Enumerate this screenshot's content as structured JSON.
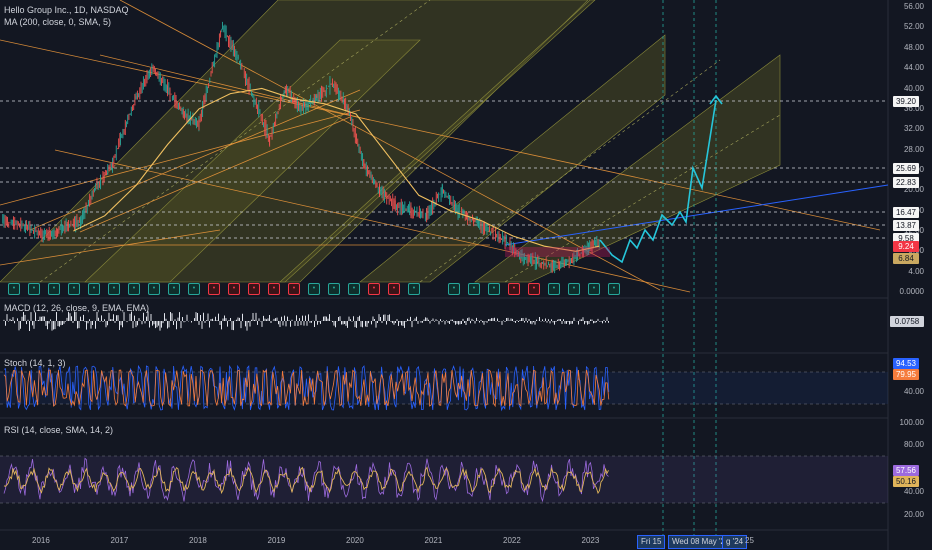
{
  "legend": {
    "symbol": "Hello Group Inc., 1D, NASDAQ",
    "ma": "MA (200, close, 0, SMA, 5)",
    "macd": "MACD (12, 26, close, 9, EMA, EMA)",
    "stoch": "Stoch (14, 1, 3)",
    "rsi": "RSI (14, close, SMA, 14, 2)"
  },
  "colors": {
    "background": "#131722",
    "ma_line": "#f0c060",
    "trendline": "#f59c3c",
    "channel_fill": "#4a4a22",
    "projection": "#26c6da",
    "long_trend": "#2962ff",
    "stoch_k": "#2962ff",
    "stoch_d": "#f57c3c",
    "rsi_line": "#9c6ade",
    "rsi_ma": "#e0b45a",
    "macd_hist": "#e0e3eb"
  },
  "chart_data": [
    {
      "type": "line",
      "title": "Hello Group Inc., 1D, NASDAQ",
      "x_tick_labels": [
        "2016",
        "2017",
        "2018",
        "2019",
        "2020",
        "2021",
        "2022",
        "2023"
      ],
      "y_tick_labels": [
        "56.00",
        "52.00",
        "48.00",
        "44.00",
        "40.00",
        "36.00",
        "32.00",
        "28.00",
        "24.00",
        "20.00",
        "16.00",
        "12.00",
        "8.00",
        "4.00",
        "0.0000"
      ],
      "ylim": [
        0,
        57
      ],
      "series": [
        {
          "values_x": [
            2015.5,
            2015.8,
            2016.0,
            2016.2,
            2016.5,
            2016.7,
            2016.9,
            2017.0,
            2017.2,
            2017.4,
            2017.6,
            2017.8,
            2018.0,
            2018.3,
            2018.5,
            2018.7,
            2018.9,
            2019.1,
            2019.3,
            2019.5,
            2019.7,
            2019.9,
            2020.1,
            2020.3,
            2020.5,
            2020.7,
            2020.9,
            2021.1,
            2021.3,
            2021.5,
            2021.7,
            2021.9,
            2022.1,
            2022.3,
            2022.5,
            2022.7,
            2022.9,
            2023.1
          ],
          "values_y": [
            14,
            13,
            11,
            12,
            14,
            21,
            25,
            30,
            38,
            44,
            40,
            35,
            33,
            52,
            46,
            38,
            30,
            40,
            36,
            38,
            41,
            36,
            25,
            20,
            17,
            16,
            15,
            20,
            16,
            14,
            12,
            10,
            7,
            6,
            5,
            6,
            8,
            10
          ]
        },
        {
          "values_x": [
            2016.4,
            2016.8,
            2017.2,
            2017.6,
            2018.0,
            2018.4,
            2018.8,
            2019.2,
            2019.6,
            2020.0,
            2020.4,
            2020.8,
            2021.2,
            2021.6,
            2022.0,
            2022.4,
            2022.8,
            2023.1
          ],
          "values_y": [
            12,
            15,
            21,
            29,
            36,
            39,
            40,
            38,
            37,
            35,
            27,
            19,
            16,
            14,
            11,
            9,
            8,
            9
          ]
        }
      ],
      "price_labels": [
        "39.20",
        "25.69",
        "22.83",
        "16.47",
        "13.87",
        "9.58",
        "9.24",
        "6.84"
      ],
      "date_labels": [
        "Fri 15",
        "Wed 08 May '24",
        "g '24",
        "25"
      ]
    },
    {
      "type": "bar",
      "title": "MACD (12, 26, close, 9, EMA, EMA)",
      "current_value": "0.0758"
    },
    {
      "type": "line",
      "title": "Stoch (14, 1, 3)",
      "y_tick_labels": [
        "40.00"
      ],
      "current_values": [
        "94.53",
        "79.95"
      ],
      "band": [
        20,
        80
      ]
    },
    {
      "type": "line",
      "title": "RSI (14, close, SMA, 14, 2)",
      "y_tick_labels": [
        "100.00",
        "80.00",
        "60.00",
        "40.00",
        "20.00"
      ],
      "current_values": [
        "57.56",
        "50.16"
      ],
      "band": [
        30,
        70
      ]
    }
  ]
}
